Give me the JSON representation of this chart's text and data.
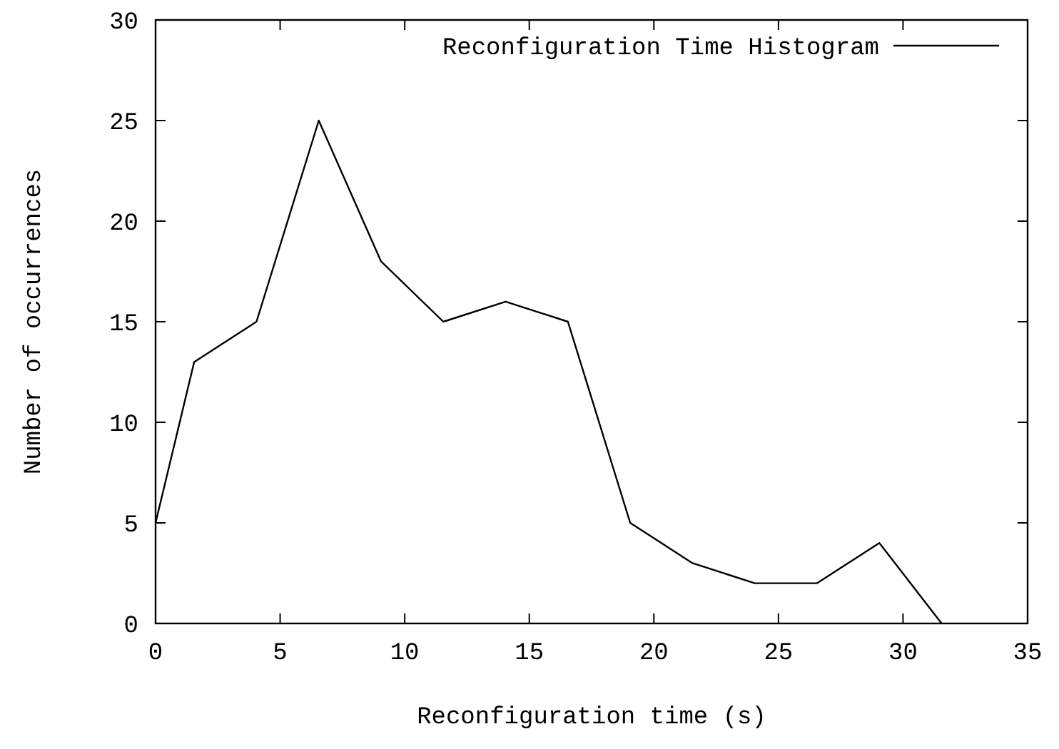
{
  "chart_data": {
    "type": "line",
    "xlabel": "Reconfiguration time (s)",
    "ylabel": "Number of occurrences",
    "x": [
      0,
      1.55,
      4.05,
      6.55,
      9.05,
      11.55,
      14.05,
      16.55,
      19.05,
      21.55,
      24.05,
      26.55,
      29.05,
      31.55
    ],
    "series": [
      {
        "name": "Reconfiguration Time Histogram",
        "color": "#000000",
        "values": [
          5,
          13,
          15,
          25,
          18,
          15,
          16,
          15,
          5,
          3,
          2,
          2,
          4,
          0
        ]
      }
    ],
    "xlim": [
      0,
      35
    ],
    "xticks": [
      0,
      5,
      10,
      15,
      20,
      25,
      30,
      35
    ],
    "ylim": [
      0,
      30
    ],
    "yticks": [
      0,
      5,
      10,
      15,
      20,
      25,
      30
    ],
    "grid": false,
    "legend": "top right",
    "marker": "none",
    "line_style": "solid"
  }
}
